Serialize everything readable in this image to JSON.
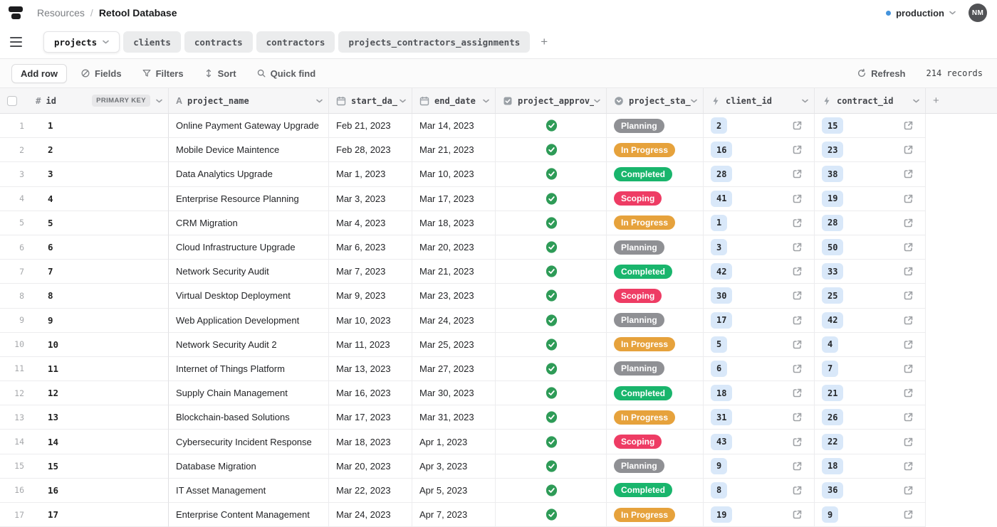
{
  "header": {
    "breadcrumb": {
      "root": "Resources",
      "separator": "/",
      "current": "Retool Database"
    },
    "environment": {
      "label": "production"
    },
    "avatar_initials": "NM"
  },
  "tabs": {
    "items": [
      {
        "label": "projects",
        "active": true
      },
      {
        "label": "clients",
        "active": false
      },
      {
        "label": "contracts",
        "active": false
      },
      {
        "label": "contractors",
        "active": false
      },
      {
        "label": "projects_contractors_assignments",
        "active": false
      }
    ],
    "add_table": "+"
  },
  "toolbar": {
    "add_row": "Add row",
    "fields": "Fields",
    "filters": "Filters",
    "sort": "Sort",
    "quick_find": "Quick find",
    "refresh": "Refresh",
    "records": "214 records"
  },
  "table": {
    "columns": [
      {
        "key": "id",
        "label": "id",
        "type_icon": "hash-icon",
        "badge": "PRIMARY KEY"
      },
      {
        "key": "project_name",
        "label": "project_name",
        "type_icon": "text-icon"
      },
      {
        "key": "start_date",
        "label": "start_da_",
        "type_icon": "calendar-icon"
      },
      {
        "key": "end_date",
        "label": "end_date",
        "type_icon": "calendar-icon"
      },
      {
        "key": "project_approved",
        "label": "project_approv_",
        "type_icon": "checkbox-icon"
      },
      {
        "key": "project_stage",
        "label": "project_sta_",
        "type_icon": "enum-icon"
      },
      {
        "key": "client_id",
        "label": "client_id",
        "type_icon": "lightning-icon"
      },
      {
        "key": "contract_id",
        "label": "contract_id",
        "type_icon": "lightning-icon"
      }
    ],
    "rows": [
      {
        "num": 1,
        "id": 1,
        "name": "Online Payment Gateway Upgrade",
        "start": "Feb 21, 2023",
        "end": "Mar 14, 2023",
        "approved": true,
        "stage": "Planning",
        "client_id": 2,
        "contract_id": 15
      },
      {
        "num": 2,
        "id": 2,
        "name": "Mobile Device Maintence",
        "start": "Feb 28, 2023",
        "end": "Mar 21, 2023",
        "approved": true,
        "stage": "In Progress",
        "client_id": 16,
        "contract_id": 23
      },
      {
        "num": 3,
        "id": 3,
        "name": "Data Analytics Upgrade",
        "start": "Mar 1, 2023",
        "end": "Mar 10, 2023",
        "approved": true,
        "stage": "Completed",
        "client_id": 28,
        "contract_id": 38
      },
      {
        "num": 4,
        "id": 4,
        "name": "Enterprise Resource Planning",
        "start": "Mar 3, 2023",
        "end": "Mar 17, 2023",
        "approved": true,
        "stage": "Scoping",
        "client_id": 41,
        "contract_id": 19
      },
      {
        "num": 5,
        "id": 5,
        "name": "CRM Migration",
        "start": "Mar 4, 2023",
        "end": "Mar 18, 2023",
        "approved": true,
        "stage": "In Progress",
        "client_id": 1,
        "contract_id": 28
      },
      {
        "num": 6,
        "id": 6,
        "name": "Cloud Infrastructure Upgrade",
        "start": "Mar 6, 2023",
        "end": "Mar 20, 2023",
        "approved": true,
        "stage": "Planning",
        "client_id": 3,
        "contract_id": 50
      },
      {
        "num": 7,
        "id": 7,
        "name": "Network Security Audit",
        "start": "Mar 7, 2023",
        "end": "Mar 21, 2023",
        "approved": true,
        "stage": "Completed",
        "client_id": 42,
        "contract_id": 33
      },
      {
        "num": 8,
        "id": 8,
        "name": "Virtual Desktop Deployment",
        "start": "Mar 9, 2023",
        "end": "Mar 23, 2023",
        "approved": true,
        "stage": "Scoping",
        "client_id": 30,
        "contract_id": 25
      },
      {
        "num": 9,
        "id": 9,
        "name": "Web Application Development",
        "start": "Mar 10, 2023",
        "end": "Mar 24, 2023",
        "approved": true,
        "stage": "Planning",
        "client_id": 17,
        "contract_id": 42
      },
      {
        "num": 10,
        "id": 10,
        "name": "Network Security Audit 2",
        "start": "Mar 11, 2023",
        "end": "Mar 25, 2023",
        "approved": true,
        "stage": "In Progress",
        "client_id": 5,
        "contract_id": 4
      },
      {
        "num": 11,
        "id": 11,
        "name": "Internet of Things Platform",
        "start": "Mar 13, 2023",
        "end": "Mar 27, 2023",
        "approved": true,
        "stage": "Planning",
        "client_id": 6,
        "contract_id": 7
      },
      {
        "num": 12,
        "id": 12,
        "name": "Supply Chain Management",
        "start": "Mar 16, 2023",
        "end": "Mar 30, 2023",
        "approved": true,
        "stage": "Completed",
        "client_id": 18,
        "contract_id": 21
      },
      {
        "num": 13,
        "id": 13,
        "name": "Blockchain-based Solutions",
        "start": "Mar 17, 2023",
        "end": "Mar 31, 2023",
        "approved": true,
        "stage": "In Progress",
        "client_id": 31,
        "contract_id": 26
      },
      {
        "num": 14,
        "id": 14,
        "name": "Cybersecurity Incident Response",
        "start": "Mar 18, 2023",
        "end": "Apr 1, 2023",
        "approved": true,
        "stage": "Scoping",
        "client_id": 43,
        "contract_id": 22
      },
      {
        "num": 15,
        "id": 15,
        "name": "Database Migration",
        "start": "Mar 20, 2023",
        "end": "Apr 3, 2023",
        "approved": true,
        "stage": "Planning",
        "client_id": 9,
        "contract_id": 18
      },
      {
        "num": 16,
        "id": 16,
        "name": "IT Asset Management",
        "start": "Mar 22, 2023",
        "end": "Apr 5, 2023",
        "approved": true,
        "stage": "Completed",
        "client_id": 8,
        "contract_id": 36
      },
      {
        "num": 17,
        "id": 17,
        "name": "Enterprise Content Management",
        "start": "Mar 24, 2023",
        "end": "Apr 7, 2023",
        "approved": true,
        "stage": "In Progress",
        "client_id": 19,
        "contract_id": 9
      }
    ]
  },
  "stage_colors": {
    "Planning": "#8F9094",
    "In Progress": "#E6A23C",
    "Completed": "#19B56C",
    "Scoping": "#EE3C64"
  },
  "colors": {
    "approved_check": "#2E9B57",
    "link_pill_bg": "#D9E8F9",
    "env_dot": "#4493DC"
  }
}
